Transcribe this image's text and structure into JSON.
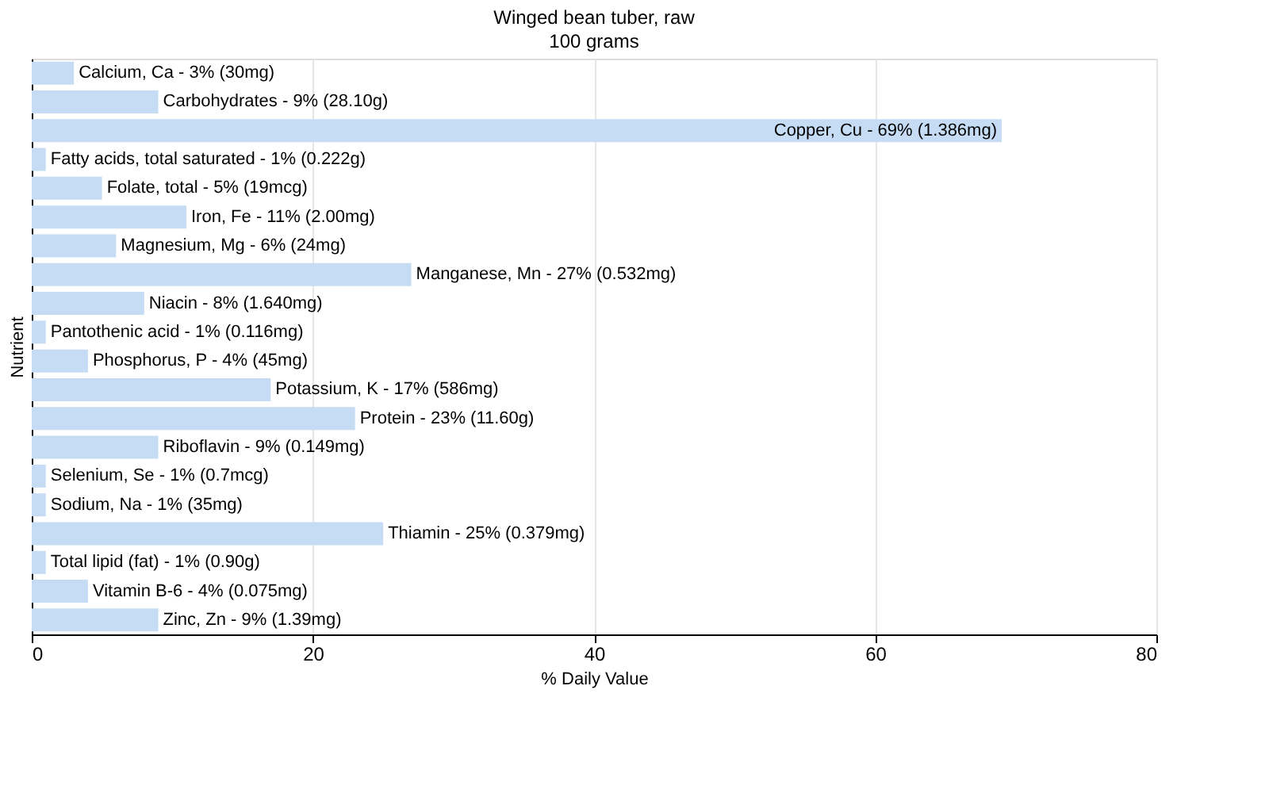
{
  "chart_data": {
    "type": "bar",
    "orientation": "horizontal",
    "title": "Winged bean tuber, raw",
    "subtitle": "100 grams",
    "xlabel": "% Daily Value",
    "ylabel": "Nutrient",
    "categories": [
      "Calcium, Ca - 3% (30mg)",
      "Carbohydrates - 9% (28.10g)",
      "Copper, Cu - 69% (1.386mg)",
      "Fatty acids, total saturated - 1% (0.222g)",
      "Folate, total - 5% (19mcg)",
      "Iron, Fe - 11% (2.00mg)",
      "Magnesium, Mg - 6% (24mg)",
      "Manganese, Mn - 27% (0.532mg)",
      "Niacin - 8% (1.640mg)",
      "Pantothenic acid - 1% (0.116mg)",
      "Phosphorus, P - 4% (45mg)",
      "Potassium, K - 17% (586mg)",
      "Protein - 23% (11.60g)",
      "Riboflavin - 9% (0.149mg)",
      "Selenium, Se - 1% (0.7mcg)",
      "Sodium, Na - 1% (35mg)",
      "Thiamin - 25% (0.379mg)",
      "Total lipid (fat) - 1% (0.90g)",
      "Vitamin B-6 - 4% (0.075mg)",
      "Zinc, Zn - 9% (1.39mg)"
    ],
    "values": [
      3,
      9,
      69,
      1,
      5,
      11,
      6,
      27,
      8,
      1,
      4,
      17,
      23,
      9,
      1,
      1,
      25,
      1,
      4,
      9
    ],
    "color": "#c6dcf5",
    "xlim": [
      0,
      80
    ],
    "xticks": [
      0,
      20,
      40,
      60,
      80
    ],
    "grid": "x",
    "tick_labels": "x"
  }
}
